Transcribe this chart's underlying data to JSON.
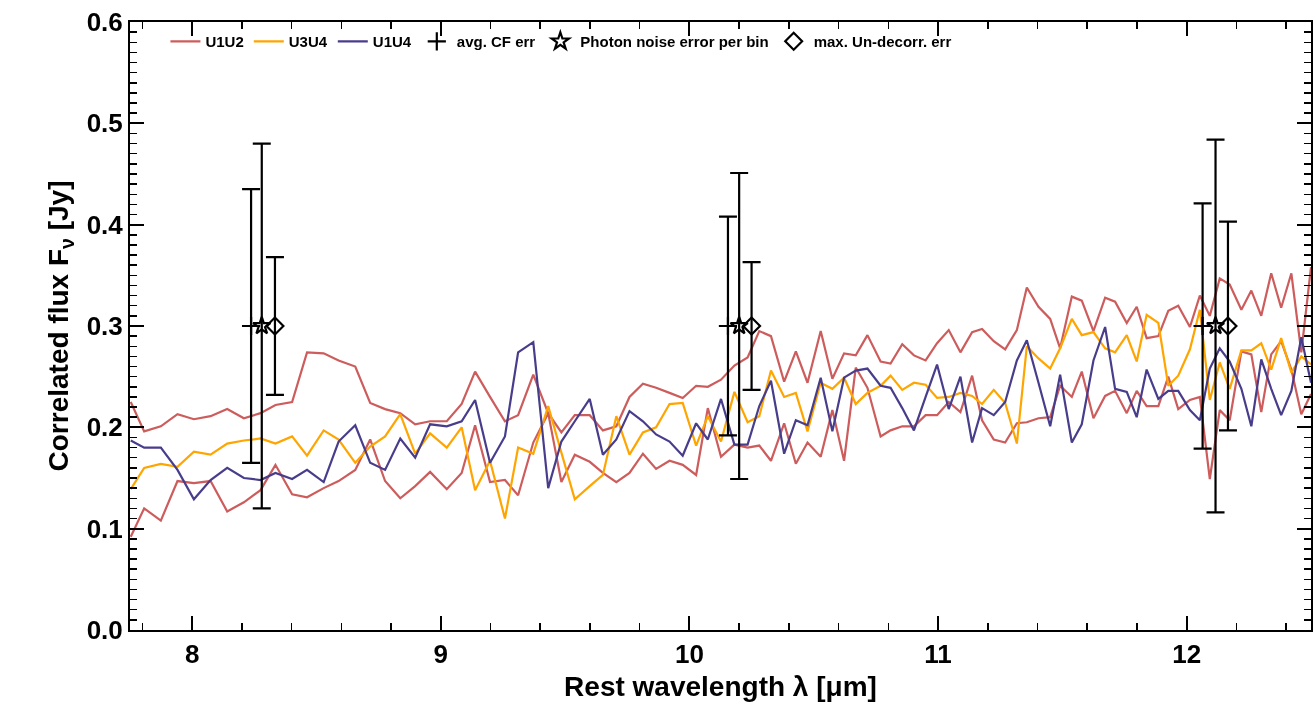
{
  "chart_data": {
    "type": "line",
    "xlabel": "Rest wavelength λ [μm]",
    "ylabel": "Correlated flux F$_{ν}$ [Jy]",
    "xlim": [
      7.75,
      12.5
    ],
    "xticks": [
      8,
      9,
      10,
      11,
      12
    ],
    "ylim": [
      0,
      0.6
    ],
    "yticks": [
      {
        "value": 0,
        "label": "0.0"
      },
      {
        "value": 0.1,
        "label": "0.1"
      },
      {
        "value": 0.2,
        "label": "0.2"
      },
      {
        "value": 0.3,
        "label": "0.3"
      },
      {
        "value": 0.4,
        "label": "0.4"
      },
      {
        "value": 0.5,
        "label": "0.5"
      },
      {
        "value": 0.6,
        "label": "0.6"
      }
    ],
    "grid": false,
    "legend": "top",
    "x": [
      7.753,
      7.807,
      7.874,
      7.941,
      8.007,
      8.074,
      8.141,
      8.208,
      8.275,
      8.335,
      8.402,
      8.462,
      8.529,
      8.589,
      8.656,
      8.716,
      8.776,
      8.837,
      8.897,
      8.957,
      9.024,
      9.084,
      9.138,
      9.198,
      9.258,
      9.311,
      9.372,
      9.432,
      9.485,
      9.539,
      9.599,
      9.652,
      9.706,
      9.759,
      9.813,
      9.866,
      9.92,
      9.973,
      10.027,
      10.074,
      10.127,
      10.181,
      10.234,
      10.281,
      10.328,
      10.381,
      10.428,
      10.475,
      10.528,
      10.575,
      10.622,
      10.669,
      10.716,
      10.769,
      10.809,
      10.856,
      10.903,
      10.95,
      10.996,
      11.043,
      11.09,
      11.137,
      11.177,
      11.224,
      11.27,
      11.317,
      11.357,
      11.404,
      11.451,
      11.491,
      11.538,
      11.578,
      11.625,
      11.672,
      11.712,
      11.759,
      11.799,
      11.839,
      11.886,
      11.926,
      11.966,
      12.013,
      12.053,
      12.093,
      12.133,
      12.173,
      12.22,
      12.26,
      12.3,
      12.34,
      12.38,
      12.421,
      12.461,
      12.5
    ],
    "series": [
      {
        "name": "U1U2",
        "color": "#cd5c5c",
        "values": [
          0.225,
          0.196,
          0.201,
          0.213,
          0.208,
          0.211,
          0.218,
          0.209,
          0.214,
          0.222,
          0.225,
          0.274,
          0.273,
          0.266,
          0.26,
          0.224,
          0.218,
          0.214,
          0.203,
          0.206,
          0.206,
          0.223,
          0.255,
          0.23,
          0.206,
          0.212,
          0.252,
          0.214,
          0.195,
          0.212,
          0.212,
          0.197,
          0.201,
          0.23,
          0.243,
          0.239,
          0.234,
          0.229,
          0.241,
          0.24,
          0.247,
          0.261,
          0.269,
          0.295,
          0.29,
          0.245,
          0.275,
          0.244,
          0.295,
          0.248,
          0.273,
          0.271,
          0.291,
          0.265,
          0.263,
          0.282,
          0.271,
          0.266,
          0.283,
          0.296,
          0.274,
          0.294,
          0.297,
          0.285,
          0.277,
          0.296,
          0.338,
          0.319,
          0.307,
          0.278,
          0.329,
          0.325,
          0.295,
          0.328,
          0.324,
          0.303,
          0.319,
          0.288,
          0.29,
          0.315,
          0.32,
          0.299,
          0.33,
          0.31,
          0.347,
          0.341,
          0.316,
          0.335,
          0.31,
          0.352,
          0.318,
          0.352,
          0.274,
          0.358
        ]
      },
      {
        "color": "#cd5c5c",
        "values": [
          0.092,
          0.12,
          0.108,
          0.147,
          0.145,
          0.147,
          0.117,
          0.126,
          0.138,
          0.163,
          0.134,
          0.131,
          0.14,
          0.147,
          0.158,
          0.188,
          0.147,
          0.13,
          0.142,
          0.156,
          0.139,
          0.155,
          0.202,
          0.146,
          0.148,
          0.133,
          0.185,
          0.214,
          0.146,
          0.173,
          0.166,
          0.155,
          0.146,
          0.155,
          0.174,
          0.159,
          0.167,
          0.163,
          0.153,
          0.219,
          0.171,
          0.183,
          0.18,
          0.182,
          0.167,
          0.204,
          0.164,
          0.185,
          0.171,
          0.217,
          0.167,
          0.259,
          0.239,
          0.191,
          0.197,
          0.201,
          0.201,
          0.212,
          0.212,
          0.225,
          0.215,
          0.251,
          0.207,
          0.188,
          0.185,
          0.204,
          0.205,
          0.209,
          0.21,
          0.241,
          0.23,
          0.255,
          0.209,
          0.231,
          0.236,
          0.214,
          0.236,
          0.221,
          0.221,
          0.25,
          0.218,
          0.227,
          0.23,
          0.149,
          0.217,
          0.207,
          0.275,
          0.272,
          0.215,
          0.272,
          0.285,
          0.257,
          0.213,
          0.233
        ]
      },
      {
        "name": "U3U4",
        "color": "#ffa500",
        "values": [
          0.139,
          0.16,
          0.164,
          0.161,
          0.176,
          0.173,
          0.184,
          0.187,
          0.189,
          0.184,
          0.191,
          0.172,
          0.197,
          0.188,
          0.165,
          0.181,
          0.191,
          0.213,
          0.174,
          0.194,
          0.18,
          0.2,
          0.138,
          0.167,
          0.11,
          0.18,
          0.174,
          0.221,
          0.175,
          0.129,
          0.142,
          0.153,
          0.211,
          0.173,
          0.195,
          0.2,
          0.223,
          0.224,
          0.182,
          0.211,
          0.186,
          0.235,
          0.205,
          0.211,
          0.256,
          0.23,
          0.234,
          0.196,
          0.244,
          0.238,
          0.249,
          0.223,
          0.234,
          0.241,
          0.251,
          0.237,
          0.244,
          0.242,
          0.229,
          0.23,
          0.234,
          0.231,
          0.223,
          0.237,
          0.224,
          0.184,
          0.28,
          0.268,
          0.258,
          0.278,
          0.307,
          0.291,
          0.294,
          0.278,
          0.274,
          0.291,
          0.265,
          0.311,
          0.303,
          0.241,
          0.251,
          0.277,
          0.316,
          0.227,
          0.264,
          0.238,
          0.276,
          0.276,
          0.283,
          0.257,
          0.288,
          0.254,
          0.27,
          0.262
        ]
      },
      {
        "name": "U1U4",
        "color": "#483d8b",
        "values": [
          0.187,
          0.18,
          0.18,
          0.158,
          0.129,
          0.148,
          0.16,
          0.15,
          0.148,
          0.155,
          0.149,
          0.158,
          0.146,
          0.186,
          0.202,
          0.165,
          0.158,
          0.189,
          0.17,
          0.203,
          0.201,
          0.206,
          0.227,
          0.165,
          0.191,
          0.274,
          0.284,
          0.14,
          0.186,
          0.206,
          0.228,
          0.173,
          0.188,
          0.216,
          0.206,
          0.193,
          0.186,
          0.172,
          0.204,
          0.188,
          0.228,
          0.183,
          0.183,
          0.221,
          0.246,
          0.174,
          0.207,
          0.202,
          0.249,
          0.196,
          0.249,
          0.256,
          0.258,
          0.241,
          0.239,
          0.219,
          0.197,
          0.23,
          0.262,
          0.218,
          0.25,
          0.185,
          0.219,
          0.212,
          0.225,
          0.266,
          0.286,
          0.244,
          0.201,
          0.252,
          0.185,
          0.203,
          0.266,
          0.299,
          0.238,
          0.235,
          0.21,
          0.257,
          0.228,
          0.236,
          0.236,
          0.217,
          0.207,
          0.258,
          0.278,
          0.265,
          0.238,
          0.201,
          0.267,
          0.238,
          0.212,
          0.236,
          0.289,
          0.244
        ]
      },
      {
        "name": "avg. CF err",
        "type": "scatter",
        "marker": "cross",
        "color": "#000000",
        "x": [
          8.237,
          10.155,
          12.064
        ],
        "values": [
          0.3,
          0.3,
          0.3
        ],
        "errors": [
          0.135,
          0.108,
          0.121
        ]
      },
      {
        "name": "Photon noise error per bin",
        "type": "scatter",
        "marker": "star",
        "color": "#000000",
        "x": [
          8.28,
          10.2,
          12.116
        ],
        "values": [
          0.3,
          0.3,
          0.3
        ],
        "errors": [
          0.18,
          0.151,
          0.184
        ]
      },
      {
        "name": "max. Un-decorr. err",
        "type": "scatter",
        "marker": "diamond",
        "color": "#000000",
        "x": [
          8.333,
          10.25,
          12.166
        ],
        "values": [
          0.3,
          0.3,
          0.3
        ],
        "errors": [
          0.068,
          0.063,
          0.103
        ]
      }
    ]
  }
}
